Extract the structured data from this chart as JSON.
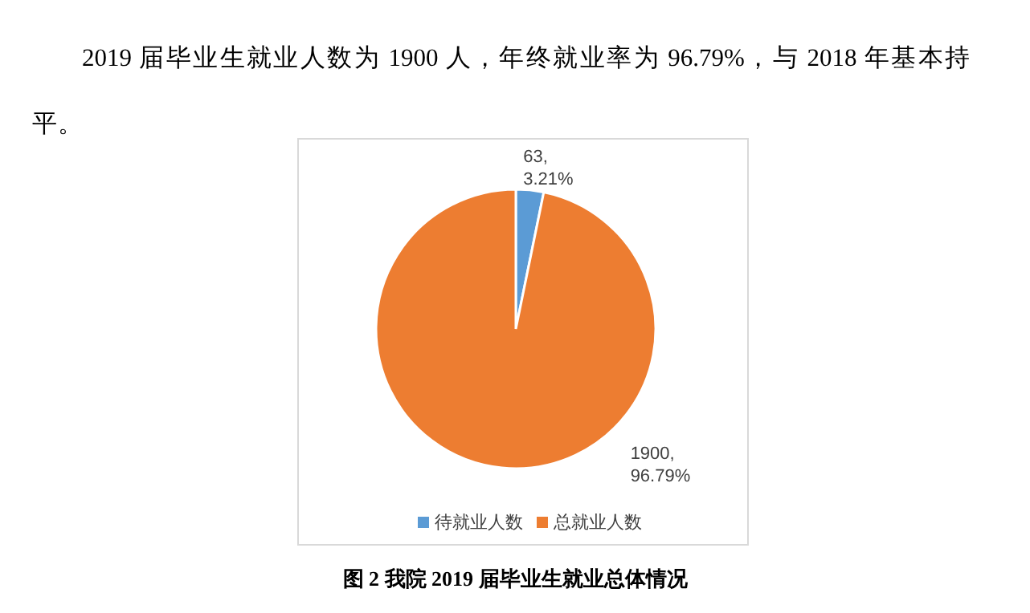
{
  "chart_data": {
    "type": "pie",
    "title": "图 2  我院 2019 届毕业生就业总体情况",
    "annotations": [
      "2019 届毕业生就业人数为 1900 人，年终就业率为 96.79%，与 2018 年基本持平。"
    ],
    "categories": [
      "待就业人数",
      "总就业人数"
    ],
    "values": [
      63,
      1900
    ],
    "value_labels": [
      "63, 3.21%",
      "1900, 96.79%"
    ],
    "colors": [
      "#5b9bd5",
      "#ed7d31"
    ],
    "legend": "bottom"
  }
}
